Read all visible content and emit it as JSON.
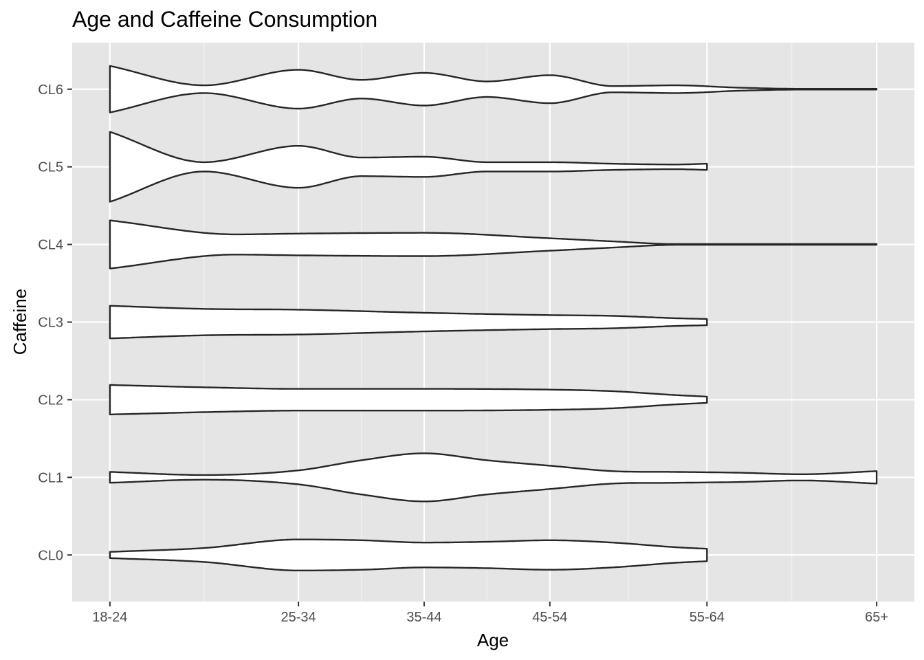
{
  "chart_data": {
    "type": "violin",
    "orientation": "horizontal",
    "title": "Age and Caffeine Consumption",
    "xlabel": "Age",
    "ylabel": "Caffeine",
    "x_categories": [
      "18-24",
      "25-34",
      "35-44",
      "45-54",
      "55-64",
      "65+"
    ],
    "x_positions": [
      1,
      2.5,
      3.5,
      4.5,
      5.75,
      7.1
    ],
    "x_range": [
      0.7,
      7.4
    ],
    "y_categories": [
      "CL0",
      "CL1",
      "CL2",
      "CL3",
      "CL4",
      "CL5",
      "CL6"
    ],
    "y_range": [
      -0.6,
      6.6
    ],
    "grid": true,
    "background_color": "#e5e5e5",
    "violin_fill": "#ffffff",
    "violin_stroke": "#262626",
    "series": [
      {
        "category": "CL0",
        "x": [
          1.0,
          1.75,
          2.5,
          3.0,
          3.5,
          4.0,
          4.5,
          5.0,
          5.5,
          5.75
        ],
        "half_width": [
          0.04,
          0.09,
          0.2,
          0.19,
          0.16,
          0.17,
          0.19,
          0.16,
          0.1,
          0.08
        ]
      },
      {
        "category": "CL1",
        "x": [
          1.0,
          1.75,
          2.5,
          3.0,
          3.5,
          4.0,
          4.5,
          5.0,
          5.5,
          6.0,
          6.5,
          7.1
        ],
        "half_width": [
          0.07,
          0.03,
          0.09,
          0.22,
          0.31,
          0.22,
          0.15,
          0.08,
          0.07,
          0.06,
          0.04,
          0.08
        ]
      },
      {
        "category": "CL2",
        "x": [
          1.0,
          1.75,
          2.5,
          3.5,
          4.5,
          5.0,
          5.5,
          5.75
        ],
        "half_width": [
          0.19,
          0.16,
          0.14,
          0.14,
          0.13,
          0.11,
          0.06,
          0.04
        ]
      },
      {
        "category": "CL3",
        "x": [
          1.0,
          1.75,
          2.5,
          3.5,
          4.5,
          5.0,
          5.5,
          5.75
        ],
        "half_width": [
          0.21,
          0.17,
          0.16,
          0.12,
          0.09,
          0.08,
          0.05,
          0.04
        ]
      },
      {
        "category": "CL4",
        "x": [
          1.0,
          2.0,
          2.5,
          3.5,
          4.5,
          5.0,
          5.5,
          6.0,
          6.5,
          7.1
        ],
        "half_width": [
          0.31,
          0.13,
          0.14,
          0.15,
          0.08,
          0.04,
          0.005,
          0.005,
          0.005,
          0.005
        ]
      },
      {
        "category": "CL5",
        "x": [
          1.0,
          1.75,
          2.5,
          3.0,
          3.5,
          4.0,
          4.5,
          5.0,
          5.5,
          5.75
        ],
        "half_width": [
          0.45,
          0.06,
          0.27,
          0.12,
          0.13,
          0.06,
          0.06,
          0.04,
          0.03,
          0.04
        ]
      },
      {
        "category": "CL6",
        "x": [
          1.0,
          1.75,
          2.5,
          3.0,
          3.5,
          4.0,
          4.5,
          5.0,
          5.5,
          6.0,
          6.5,
          7.1
        ],
        "half_width": [
          0.3,
          0.05,
          0.25,
          0.12,
          0.21,
          0.1,
          0.18,
          0.04,
          0.05,
          0.02,
          0.005,
          0.005
        ]
      }
    ]
  }
}
